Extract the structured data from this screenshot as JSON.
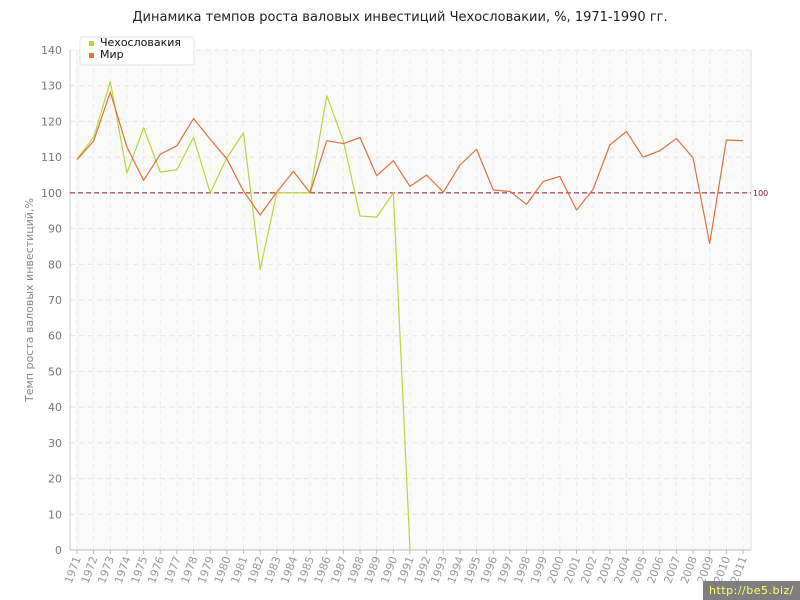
{
  "chart_data": {
    "type": "line",
    "title": "Динамика темпов роста валовых инвестиций Чехословакии, %, 1971-1990 гг.",
    "ylabel": "Темп роста валовых инвестиций,%",
    "ylim": [
      0,
      140
    ],
    "yticks": [
      0,
      10,
      20,
      30,
      40,
      50,
      60,
      70,
      80,
      90,
      100,
      110,
      120,
      130,
      140
    ],
    "x": [
      "1971",
      "1972",
      "1973",
      "1974",
      "1975",
      "1976",
      "1977",
      "1978",
      "1979",
      "1980",
      "1981",
      "1982",
      "1983",
      "1984",
      "1985",
      "1986",
      "1987",
      "1988",
      "1989",
      "1990",
      "1991",
      "1992",
      "1993",
      "1994",
      "1995",
      "1996",
      "1997",
      "1998",
      "1999",
      "2000",
      "2001",
      "2002",
      "2003",
      "2004",
      "2005",
      "2006",
      "2007",
      "2008",
      "2009",
      "2010",
      "2011"
    ],
    "grid": true,
    "legend_position": "top-left",
    "reference_line": {
      "value": 100,
      "label": "100",
      "color": "#8b1a2b"
    },
    "series": [
      {
        "name": "Чехословакия",
        "color": "#b5d93a",
        "values": [
          109.5,
          115.5,
          131.2,
          105.5,
          118.2,
          105.8,
          106.5,
          115.5,
          100.0,
          109.8,
          116.8,
          78.5,
          100.0,
          100.0,
          100.0,
          127.2,
          114.5,
          93.5,
          93.2,
          100.0,
          0.0,
          null,
          null,
          null,
          null,
          null,
          null,
          null,
          null,
          null,
          null,
          null,
          null,
          null,
          null,
          null,
          null,
          null,
          null,
          null,
          null
        ]
      },
      {
        "name": "Мир",
        "color": "#e0713c",
        "values": [
          109.3,
          114.5,
          128.2,
          112.8,
          103.5,
          110.8,
          113.2,
          120.8,
          115.0,
          109.5,
          100.5,
          93.8,
          100.2,
          106.0,
          100.0,
          114.6,
          113.8,
          115.5,
          104.8,
          109.0,
          101.8,
          105.0,
          100.2,
          107.8,
          112.2,
          100.8,
          100.4,
          96.8,
          103.2,
          104.6,
          95.2,
          101.0,
          113.4,
          117.2,
          110.0,
          111.8,
          115.2,
          109.8,
          85.8,
          114.8,
          114.6
        ]
      }
    ]
  },
  "watermark": "http://be5.biz/"
}
